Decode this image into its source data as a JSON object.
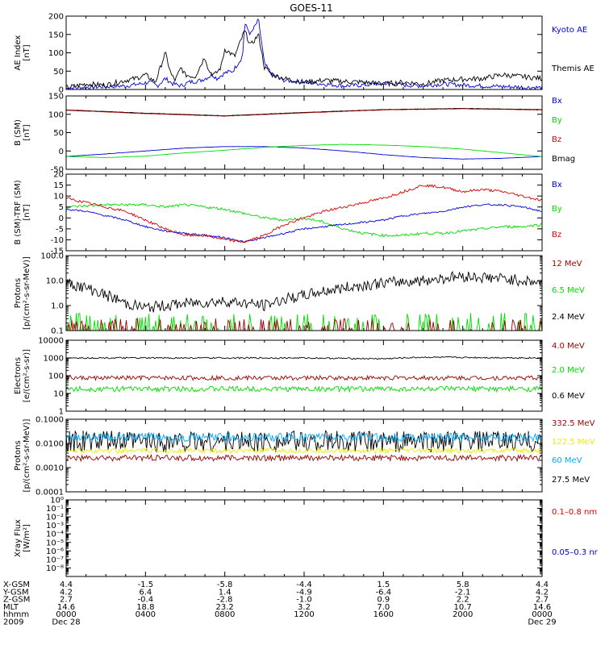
{
  "title": "GOES-11",
  "colors": {
    "black": "#000000",
    "blue": "#0000dd",
    "red": "#dd0000",
    "green": "#00dd00",
    "darkred": "#990000",
    "yellow": "#eeee00",
    "cyan": "#00aaff"
  },
  "chart_data": [
    {
      "type": "line",
      "id": "ae",
      "ylabel": [
        "AE Index",
        "[nT]"
      ],
      "scale": "linear",
      "ylim": [
        0,
        200
      ],
      "yticks": [
        0,
        50,
        100,
        150,
        200
      ],
      "yticklabels": [
        "0",
        "50",
        "100",
        "150",
        "200"
      ],
      "series": [
        {
          "name": "Kyoto AE",
          "color": "blue",
          "x": [
            0,
            0.5,
            1,
            2,
            3,
            3.7,
            4.2,
            4.6,
            5,
            5.4,
            5.8,
            6.2,
            6.8,
            7.2,
            7.4,
            7.6,
            8,
            8.4,
            8.9,
            9,
            9.3,
            9.7,
            10,
            10.4,
            11,
            12,
            13,
            14,
            15,
            16,
            17,
            18,
            19,
            20,
            21,
            22,
            23,
            24
          ],
          "y": [
            3,
            5,
            6,
            8,
            10,
            15,
            20,
            10,
            30,
            15,
            10,
            20,
            25,
            35,
            40,
            30,
            45,
            50,
            90,
            180,
            150,
            190,
            70,
            40,
            25,
            20,
            15,
            10,
            12,
            18,
            12,
            10,
            15,
            12,
            10,
            8,
            6,
            5
          ],
          "noise": 6
        },
        {
          "name": "Themis AE",
          "color": "black",
          "x": [
            0,
            0.5,
            1,
            2,
            3,
            3.5,
            4,
            4.5,
            5,
            5.3,
            5.5,
            5.8,
            6,
            6.5,
            7,
            7.2,
            7.5,
            7.8,
            8,
            8.5,
            9,
            9.3,
            9.7,
            10,
            10.4,
            11,
            12,
            13,
            14,
            15,
            16,
            17,
            18,
            19,
            20,
            21,
            22,
            23,
            24
          ],
          "y": [
            5,
            10,
            15,
            12,
            25,
            30,
            40,
            20,
            100,
            40,
            25,
            60,
            40,
            35,
            90,
            50,
            40,
            60,
            110,
            90,
            160,
            120,
            150,
            60,
            40,
            30,
            20,
            25,
            22,
            20,
            15,
            20,
            15,
            25,
            28,
            30,
            40,
            35,
            30
          ],
          "noise": 7
        }
      ],
      "legend": [
        {
          "label": "Kyoto AE",
          "color": "blue"
        },
        {
          "label": "Themis AE",
          "color": "black"
        }
      ]
    },
    {
      "type": "line",
      "id": "bsm",
      "ylabel": [
        "B (SM)",
        "[nT]"
      ],
      "scale": "linear",
      "ylim": [
        -50,
        150
      ],
      "yticks": [
        -50,
        0,
        50,
        100,
        150
      ],
      "yticklabels": [
        "-50",
        "0",
        "50",
        "100",
        "150"
      ],
      "series": [
        {
          "name": "Bmag",
          "color": "black",
          "x": [
            0,
            4,
            8,
            12,
            16,
            20,
            24
          ],
          "y": [
            112,
            103,
            96,
            105,
            113,
            116,
            113
          ],
          "noise": 0.4
        },
        {
          "name": "Bz",
          "color": "darkred",
          "x": [
            0,
            4,
            8,
            12,
            16,
            20,
            24
          ],
          "y": [
            111,
            102,
            95,
            104,
            112,
            115,
            112
          ],
          "noise": 0.4
        },
        {
          "name": "Bx",
          "color": "blue",
          "x": [
            0,
            2,
            4,
            6,
            8,
            10,
            12,
            14,
            16,
            18,
            20,
            22,
            24
          ],
          "y": [
            -15,
            -8,
            0,
            8,
            12,
            12,
            8,
            0,
            -10,
            -18,
            -22,
            -20,
            -15
          ],
          "noise": 0.3
        },
        {
          "name": "By",
          "color": "green",
          "x": [
            0,
            2,
            4,
            6,
            8,
            10,
            12,
            14,
            16,
            18,
            20,
            22,
            24
          ],
          "y": [
            -15,
            -18,
            -14,
            -5,
            2,
            10,
            15,
            18,
            16,
            12,
            5,
            -5,
            -15
          ],
          "noise": 0.3
        }
      ],
      "legend": [
        {
          "label": "Bx",
          "color": "blue"
        },
        {
          "label": "By",
          "color": "green"
        },
        {
          "label": "Bz",
          "color": "red"
        },
        {
          "label": "Bmag",
          "color": "black"
        }
      ]
    },
    {
      "type": "line",
      "id": "bsmtrf",
      "ylabel": [
        "B (SM)-TRF (SM)",
        "[nT]"
      ],
      "scale": "linear",
      "ylim": [
        -15,
        20
      ],
      "yticks": [
        -15,
        -10,
        -5,
        0,
        5,
        10,
        15,
        20
      ],
      "yticklabels": [
        "-15",
        "-10",
        "-5",
        "0",
        "5",
        "10",
        "15",
        "20"
      ],
      "series": [
        {
          "name": "By",
          "color": "green",
          "x": [
            0,
            2,
            4,
            5,
            6,
            7,
            8,
            9,
            10,
            11,
            12,
            13,
            14,
            15,
            16,
            17,
            18,
            19,
            20,
            21,
            22,
            23,
            24
          ],
          "y": [
            5,
            6,
            6,
            5,
            6,
            5,
            4,
            2,
            0,
            -1,
            0,
            -2,
            -5,
            -7,
            -8,
            -8,
            -7,
            -7,
            -6,
            -5,
            -4,
            -4,
            -3
          ],
          "noise": 0.6
        },
        {
          "name": "Bx",
          "color": "blue",
          "x": [
            0,
            1,
            2,
            3,
            4,
            5,
            6,
            7,
            8,
            9,
            10,
            11,
            12,
            13,
            14,
            15,
            16,
            17,
            18,
            19,
            20,
            21,
            22,
            23,
            24
          ],
          "y": [
            4,
            3,
            1,
            -1,
            -4,
            -6,
            -7,
            -8,
            -9,
            -11,
            -9,
            -7,
            -5,
            -4,
            -3,
            -2,
            -1,
            1,
            2,
            3,
            5,
            6,
            6,
            5,
            3
          ],
          "noise": 0.4
        },
        {
          "name": "Bz",
          "color": "red",
          "x": [
            0,
            1,
            2,
            3,
            4,
            5,
            6,
            7,
            8,
            9,
            10,
            11,
            12,
            13,
            14,
            15,
            16,
            17,
            18,
            19,
            20,
            21,
            22,
            23,
            24
          ],
          "y": [
            9,
            7,
            5,
            3,
            -1,
            -5,
            -8,
            -8,
            -10,
            -11,
            -8,
            -3,
            0,
            3,
            5,
            7,
            9,
            12,
            15,
            14,
            12,
            13,
            12,
            10,
            8
          ],
          "noise": 0.6
        }
      ],
      "legend": [
        {
          "label": "Bx",
          "color": "blue"
        },
        {
          "label": "By",
          "color": "green"
        },
        {
          "label": "Bz",
          "color": "red"
        }
      ]
    },
    {
      "type": "line",
      "id": "protons_high",
      "ylabel": [
        "Protons",
        "[p/(cm²-s-sr-MeV)]"
      ],
      "scale": "log",
      "ylim": [
        0.1,
        100
      ],
      "yticks": [
        0.1,
        1,
        10,
        100
      ],
      "yticklabels": [
        "0.1",
        "1.0",
        "10.0",
        "100.0"
      ],
      "series": [
        {
          "name": "2.4 MeV",
          "color": "black",
          "x": [
            0,
            1,
            2,
            3,
            4,
            6,
            8,
            10,
            12,
            14,
            16,
            18,
            20,
            22,
            24
          ],
          "y": [
            8,
            5,
            2.5,
            1.2,
            0.8,
            1.2,
            1.5,
            1.0,
            2.5,
            5,
            8,
            10,
            15,
            12,
            8
          ],
          "noise": 0.45,
          "log_noise": true
        },
        {
          "name": "6.5 MeV",
          "color": "green",
          "x": [
            0,
            24
          ],
          "y": [
            0.12,
            0.12
          ],
          "noise": 0,
          "spiky": true,
          "spike_max": 0.5
        },
        {
          "name": "12 MeV",
          "color": "darkred",
          "x": [
            0,
            24
          ],
          "y": [
            0.1,
            0.1
          ],
          "noise": 0,
          "spiky": true,
          "spike_max": 0.3
        }
      ],
      "legend": [
        {
          "label": "12 MeV",
          "color": "darkred"
        },
        {
          "label": "6.5 MeV",
          "color": "green"
        },
        {
          "label": "2.4 MeV",
          "color": "black"
        }
      ]
    },
    {
      "type": "line",
      "id": "electrons",
      "ylabel": [
        "Electrons",
        "[e/(cm²-s-sr)]"
      ],
      "scale": "log",
      "ylim": [
        1,
        10000
      ],
      "yticks": [
        1,
        10,
        100,
        1000,
        10000
      ],
      "yticklabels": [
        "1",
        "10",
        "100",
        "1000",
        "10000"
      ],
      "series": [
        {
          "name": "0.6 MeV",
          "color": "black",
          "x": [
            0,
            12,
            16,
            18,
            24
          ],
          "y": [
            1000,
            1000,
            900,
            1100,
            1000
          ],
          "noise": 0.08,
          "log_noise": true
        },
        {
          "name": "4.0 MeV",
          "color": "darkred",
          "x": [
            0,
            24
          ],
          "y": [
            75,
            75
          ],
          "noise": 0.25,
          "log_noise": true
        },
        {
          "name": "2.0 MeV",
          "color": "green",
          "x": [
            0,
            24
          ],
          "y": [
            18,
            18
          ],
          "noise": 0.3,
          "log_noise": true
        }
      ],
      "legend": [
        {
          "label": "4.0 MeV",
          "color": "darkred"
        },
        {
          "label": "2.0 MeV",
          "color": "green"
        },
        {
          "label": "0.6 MeV",
          "color": "black"
        }
      ]
    },
    {
      "type": "line",
      "id": "protons_low",
      "ylabel": [
        "Protons",
        "[p/(cm²-s-sr-MeV)]"
      ],
      "scale": "log",
      "ylim": [
        0.0001,
        0.1
      ],
      "yticks": [
        0.0001,
        0.001,
        0.01,
        0.1
      ],
      "yticklabels": [
        "0.0001",
        "0.0010",
        "0.0100",
        "0.1000"
      ],
      "series": [
        {
          "name": "27.5 MeV",
          "color": "black",
          "x": [
            0,
            24
          ],
          "y": [
            0.012,
            0.012
          ],
          "noise": 0.9,
          "log_noise": true
        },
        {
          "name": "60 MeV",
          "color": "cyan",
          "x": [
            0,
            24
          ],
          "y": [
            0.018,
            0.018
          ],
          "noise": 0.35,
          "log_noise": true
        },
        {
          "name": "122.5 MeV",
          "color": "yellow",
          "x": [
            0,
            24
          ],
          "y": [
            0.005,
            0.005
          ],
          "noise": 0.2,
          "log_noise": true
        },
        {
          "name": "332.5 MeV",
          "color": "darkred",
          "x": [
            0,
            24
          ],
          "y": [
            0.0025,
            0.0025
          ],
          "noise": 0.25,
          "log_noise": true
        }
      ],
      "legend": [
        {
          "label": "332.5 MeV",
          "color": "darkred"
        },
        {
          "label": "122.5 MeV",
          "color": "yellow"
        },
        {
          "label": "60 MeV",
          "color": "cyan"
        },
        {
          "label": "27.5 MeV",
          "color": "black"
        }
      ]
    },
    {
      "type": "line",
      "id": "xray",
      "ylabel": [
        "Xray Flux",
        "[W/m²]"
      ],
      "scale": "log",
      "ylim": [
        1e-09,
        1
      ],
      "yticks": [
        1e-08,
        1e-07,
        1e-06,
        1e-05,
        0.0001,
        0.001,
        0.01,
        0.1,
        1
      ],
      "yticklabels": [
        "10⁻⁸",
        "10⁻⁷",
        "10⁻⁶",
        "10⁻⁵",
        "10⁻⁴",
        "10⁻³",
        "10⁻²",
        "10⁻¹",
        "10⁰"
      ],
      "series": [],
      "legend": [
        {
          "label": "0.1–0.8 nm",
          "color": "red"
        },
        {
          "label": "0.05–0.3 nr",
          "color": "blue"
        }
      ]
    }
  ],
  "x_axis": {
    "range_hours": [
      0,
      24
    ],
    "tick_hours": [
      0,
      4,
      8,
      12,
      16,
      20,
      24
    ]
  },
  "ephemeris": {
    "rows": [
      {
        "label": "X-GSM",
        "values": [
          "4.4",
          "-1.5",
          "-5.8",
          "-4.4",
          "1.5",
          "5.8",
          "4.4"
        ]
      },
      {
        "label": "Y-GSM",
        "values": [
          "4.2",
          "6.4",
          "1.4",
          "-4.9",
          "-6.4",
          "-2.1",
          "4.2"
        ]
      },
      {
        "label": "Z-GSM",
        "values": [
          "2.7",
          "-0.4",
          "-2.8",
          "-1.0",
          "0.9",
          "2.2",
          "2.7"
        ]
      },
      {
        "label": "MLT",
        "values": [
          "14.6",
          "18.8",
          "23.2",
          "3.2",
          "7.0",
          "10.7",
          "14.6"
        ]
      },
      {
        "label": "hhmm",
        "values": [
          "0000",
          "0400",
          "0800",
          "1200",
          "1600",
          "2000",
          "0000"
        ]
      },
      {
        "label": "2009",
        "values": [
          "Dec 28",
          "",
          "",
          "",
          "",
          "",
          "Dec 29"
        ]
      }
    ]
  }
}
